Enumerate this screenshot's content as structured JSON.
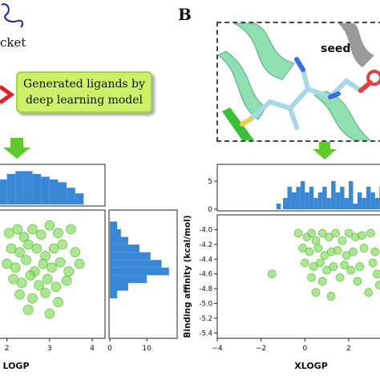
{
  "panel_a": {
    "pocket_label": "cket",
    "callout_text": [
      "Generated ligands by",
      "deep learning model"
    ]
  },
  "panel_b": {
    "letter": "B",
    "seed_label": "seed"
  },
  "chart_data": [
    {
      "type": "bar",
      "panel": "A-top-histogram",
      "title": "",
      "x": [
        1.9,
        2.1,
        2.3,
        2.5,
        2.7,
        2.9,
        3.1,
        3.3,
        3.5,
        3.7
      ],
      "values": [
        9,
        11,
        12,
        12,
        11,
        10,
        9,
        8,
        6,
        4
      ]
    },
    {
      "type": "bar",
      "panel": "A-right-histogram",
      "xlabel": "",
      "xticks": [
        0,
        10
      ],
      "xlim": [
        0,
        18
      ],
      "y": [
        -4.0,
        -4.1,
        -4.2,
        -4.3,
        -4.4,
        -4.5,
        -4.6,
        -4.7,
        -4.8,
        -4.9
      ],
      "values": [
        2,
        3,
        5,
        8,
        11,
        14,
        16,
        10,
        5,
        2
      ]
    },
    {
      "type": "scatter",
      "panel": "A-main",
      "xlabel": "LOGP",
      "xticks": [
        2,
        3,
        4
      ],
      "xlim": [
        1.8,
        4.3
      ],
      "ylim": [
        -5.45,
        -3.8
      ],
      "points": [
        [
          2.05,
          -4.1
        ],
        [
          2.25,
          -4.05
        ],
        [
          2.4,
          -4.15
        ],
        [
          2.6,
          -4.05
        ],
        [
          2.8,
          -4.12
        ],
        [
          3.0,
          -4.0
        ],
        [
          3.2,
          -4.1
        ],
        [
          3.5,
          -4.05
        ],
        [
          2.1,
          -4.3
        ],
        [
          2.3,
          -4.35
        ],
        [
          2.5,
          -4.25
        ],
        [
          2.7,
          -4.3
        ],
        [
          2.9,
          -4.4
        ],
        [
          3.1,
          -4.3
        ],
        [
          3.3,
          -4.25
        ],
        [
          3.6,
          -4.35
        ],
        [
          2.0,
          -4.5
        ],
        [
          2.2,
          -4.55
        ],
        [
          2.45,
          -4.45
        ],
        [
          2.65,
          -4.6
        ],
        [
          2.85,
          -4.5
        ],
        [
          3.05,
          -4.55
        ],
        [
          3.25,
          -4.48
        ],
        [
          3.45,
          -4.6
        ],
        [
          3.7,
          -4.5
        ],
        [
          2.15,
          -4.7
        ],
        [
          2.35,
          -4.75
        ],
        [
          2.55,
          -4.65
        ],
        [
          2.75,
          -4.78
        ],
        [
          2.95,
          -4.7
        ],
        [
          3.15,
          -4.8
        ],
        [
          3.4,
          -4.72
        ],
        [
          2.3,
          -4.9
        ],
        [
          2.6,
          -4.95
        ],
        [
          2.9,
          -4.88
        ],
        [
          3.2,
          -5.0
        ],
        [
          2.5,
          -5.1
        ],
        [
          3.0,
          -5.15
        ]
      ]
    },
    {
      "type": "bar",
      "panel": "B-top-histogram",
      "yticks": [
        0,
        5
      ],
      "ylim": [
        0,
        7
      ],
      "x": [
        -1.2,
        -0.9,
        -0.7,
        -0.5,
        -0.3,
        -0.1,
        0.1,
        0.3,
        0.5,
        0.7,
        0.9,
        1.1,
        1.3,
        1.5,
        1.7,
        1.9,
        2.1,
        2.3,
        2.5,
        2.7,
        2.9,
        3.1,
        3.3,
        3.5
      ],
      "values": [
        1,
        2,
        4,
        3,
        4,
        5,
        3,
        4,
        2,
        3,
        4,
        2,
        5,
        3,
        4,
        2,
        5,
        1,
        3,
        2,
        4,
        3,
        2,
        4
      ]
    },
    {
      "type": "scatter",
      "panel": "B-main",
      "xlabel": "XLOGP",
      "ylabel": "Binding affinity (kcal/mol)",
      "xticks": [
        -4,
        -2,
        0,
        2
      ],
      "xlim": [
        -4,
        3.5
      ],
      "yticks": [
        -4.0,
        -4.2,
        -4.4,
        -4.6,
        -4.8,
        -5.0,
        -5.2,
        -5.4
      ],
      "ylim": [
        -5.45,
        -3.8
      ],
      "points": [
        [
          -0.3,
          -4.05
        ],
        [
          0.1,
          -4.1
        ],
        [
          0.3,
          -4.05
        ],
        [
          0.5,
          -4.15
        ],
        [
          0.8,
          -4.05
        ],
        [
          1.1,
          -4.1
        ],
        [
          1.4,
          -4.05
        ],
        [
          1.7,
          -4.15
        ],
        [
          2.0,
          -4.05
        ],
        [
          2.3,
          -4.1
        ],
        [
          2.6,
          -4.08
        ],
        [
          3.0,
          -4.05
        ],
        [
          -0.1,
          -4.25
        ],
        [
          0.2,
          -4.3
        ],
        [
          0.6,
          -4.25
        ],
        [
          0.9,
          -4.35
        ],
        [
          1.2,
          -4.3
        ],
        [
          1.5,
          -4.28
        ],
        [
          1.9,
          -4.35
        ],
        [
          2.2,
          -4.3
        ],
        [
          2.7,
          -4.25
        ],
        [
          3.2,
          -4.3
        ],
        [
          0.0,
          -4.45
        ],
        [
          0.4,
          -4.5
        ],
        [
          0.7,
          -4.45
        ],
        [
          1.0,
          -4.55
        ],
        [
          1.3,
          -4.5
        ],
        [
          1.8,
          -4.48
        ],
        [
          2.1,
          -4.55
        ],
        [
          2.5,
          -4.5
        ],
        [
          3.1,
          -4.45
        ],
        [
          -1.5,
          -4.6
        ],
        [
          0.3,
          -4.65
        ],
        [
          0.8,
          -4.7
        ],
        [
          1.6,
          -4.65
        ],
        [
          2.4,
          -4.7
        ],
        [
          3.3,
          -4.6
        ],
        [
          0.5,
          -4.85
        ],
        [
          2.9,
          -4.85
        ],
        [
          3.4,
          -4.75
        ],
        [
          1.2,
          -4.9
        ]
      ]
    }
  ]
}
